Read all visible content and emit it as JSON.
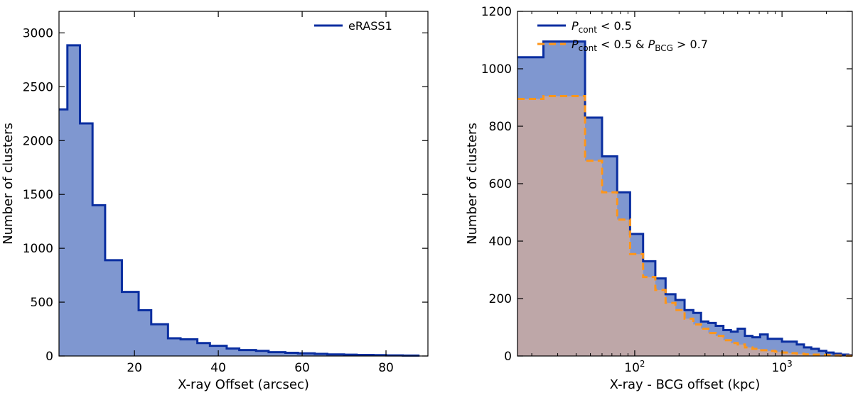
{
  "chart_data": [
    {
      "type": "histogram",
      "xlabel": "X-ray Offset (arcsec)",
      "ylabel": "Number of clusters",
      "xlim": [
        2,
        90
      ],
      "ylim": [
        0,
        3200
      ],
      "xscale": "linear",
      "xticks": [
        20,
        40,
        60,
        80
      ],
      "xtick_labels": [
        "20",
        "40",
        "60",
        "80"
      ],
      "yticks": [
        0,
        500,
        1000,
        1500,
        2000,
        2500,
        3000
      ],
      "ytick_labels": [
        "0",
        "500",
        "1000",
        "1500",
        "2000",
        "2500",
        "3000"
      ],
      "legend_position": "top-right",
      "grid": false,
      "series": [
        {
          "name": "eRASS1",
          "style": "solid",
          "color": "#0a2ea0",
          "fill": "#7f97d0",
          "bin_edges": [
            2,
            4,
            7,
            10,
            13,
            17,
            21,
            24,
            28,
            31,
            35,
            38,
            42,
            45,
            49,
            52,
            56,
            59,
            63,
            66,
            70,
            73,
            77,
            80,
            84,
            88
          ],
          "counts": [
            2290,
            2885,
            2160,
            1400,
            890,
            595,
            425,
            295,
            165,
            155,
            120,
            95,
            70,
            55,
            48,
            35,
            30,
            25,
            20,
            15,
            12,
            10,
            8,
            6,
            4
          ]
        }
      ]
    },
    {
      "type": "histogram",
      "xlabel": "X-ray - BCG offset (kpc)",
      "ylabel": "Number of clusters",
      "xlim": [
        16,
        3000
      ],
      "ylim": [
        0,
        1200
      ],
      "xscale": "log",
      "xticks": [
        100,
        1000
      ],
      "xtick_labels": [
        "10^2",
        "10^3"
      ],
      "yticks": [
        0,
        200,
        400,
        600,
        800,
        1000,
        1200
      ],
      "ytick_labels": [
        "0",
        "200",
        "400",
        "600",
        "800",
        "1000",
        "1200"
      ],
      "legend_position": "top-right",
      "grid": false,
      "series": [
        {
          "name": "P_cont < 0.5",
          "label_parts": {
            "sym": "P",
            "sub": "cont",
            "rest": " < 0.5"
          },
          "style": "solid",
          "color": "#0a2ea0",
          "fill": "#7f97d0",
          "bin_edges": [
            16,
            24,
            46,
            60,
            76,
            93,
            114,
            138,
            162,
            189,
            218,
            250,
            282,
            316,
            355,
            400,
            450,
            500,
            560,
            630,
            710,
            800,
            900,
            1000,
            1120,
            1260,
            1410,
            1580,
            1780,
            2000,
            2240,
            2510,
            2820,
            3000
          ],
          "counts": [
            1040,
            1095,
            830,
            695,
            570,
            425,
            330,
            270,
            215,
            195,
            160,
            150,
            120,
            115,
            105,
            90,
            85,
            95,
            70,
            65,
            75,
            60,
            60,
            50,
            50,
            40,
            30,
            25,
            18,
            12,
            8,
            5,
            3
          ]
        },
        {
          "name": "P_cont < 0.5 & P_BCG > 0.7",
          "label_parts": {
            "sym": "P",
            "sub": "cont",
            "rest": " < 0.5 & ",
            "sym2": "P",
            "sub2": "BCG",
            "rest2": " > 0.7"
          },
          "style": "dashed",
          "color": "#ff9619",
          "fill": "#c9a9a1",
          "bin_edges": [
            16,
            24,
            46,
            60,
            76,
            93,
            114,
            138,
            162,
            189,
            218,
            250,
            282,
            316,
            355,
            400,
            450,
            500,
            560,
            630,
            710,
            800,
            900,
            1000,
            1120,
            1260,
            1410,
            1580,
            1780,
            2000,
            2240,
            2510,
            2820,
            3000
          ],
          "counts": [
            895,
            905,
            680,
            570,
            475,
            355,
            275,
            230,
            185,
            160,
            130,
            110,
            95,
            80,
            70,
            55,
            45,
            40,
            30,
            25,
            20,
            18,
            15,
            12,
            10,
            8,
            6,
            5,
            4,
            3,
            2,
            1,
            1
          ]
        }
      ]
    }
  ]
}
